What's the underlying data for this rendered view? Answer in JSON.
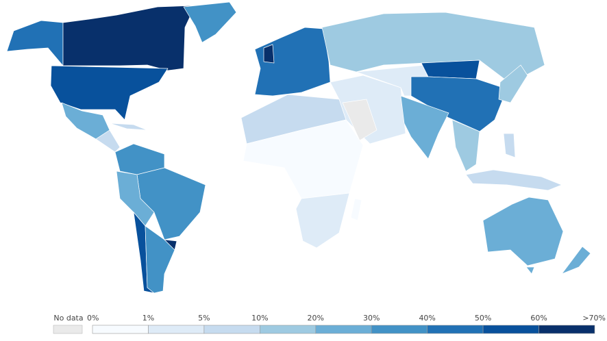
{
  "legend": {
    "no_data": "No data",
    "no_data_color": "#eaeaea",
    "labels": [
      "0%",
      "1%",
      "5%",
      "10%",
      "20%",
      "30%",
      "40%",
      "50%",
      "60%",
      ">70%"
    ],
    "colors": [
      "#f7fbff",
      "#deebf7",
      "#c6dbef",
      "#9ecae1",
      "#6baed6",
      "#4292c6",
      "#2171b5",
      "#08519c",
      "#08306b"
    ]
  }
}
